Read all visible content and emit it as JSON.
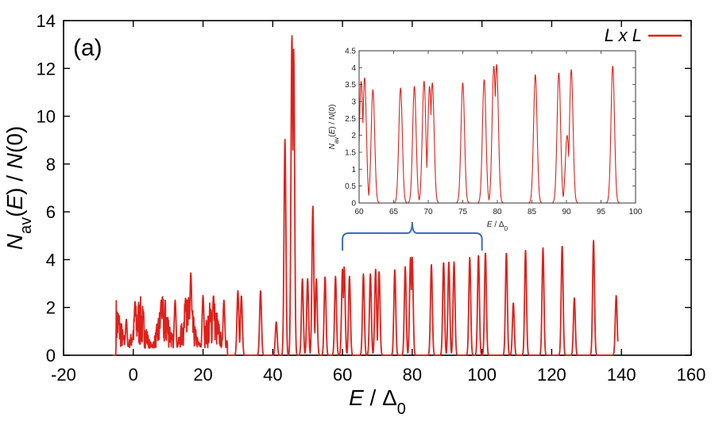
{
  "chart_data": [
    {
      "type": "line",
      "panel_label": "(a)",
      "xlabel": "E / Δ0",
      "ylabel": "Nav(E) / N(0)",
      "xlim": [
        -20,
        160
      ],
      "ylim": [
        0,
        14
      ],
      "xticks": [
        -20,
        0,
        20,
        40,
        60,
        80,
        100,
        120,
        140,
        160
      ],
      "yticks": [
        0,
        2,
        4,
        6,
        8,
        10,
        12,
        14
      ],
      "legend": {
        "label": "L x L",
        "position": "top-right"
      },
      "series": [
        {
          "name": "L x L",
          "color": "#e0201a",
          "noisy_band": {
            "x_range": [
              -5,
              27
            ],
            "approx_level": [
              0.3,
              2.5
            ]
          },
          "peaks": [
            [
              -2,
              1.5
            ],
            [
              0.5,
              2.25
            ],
            [
              8,
              2.3
            ],
            [
              12,
              2.3
            ],
            [
              15,
              2.4
            ],
            [
              16.5,
              3.45
            ],
            [
              20,
              2.5
            ],
            [
              23,
              2.5
            ],
            [
              26,
              2.3
            ],
            [
              30,
              2.7
            ],
            [
              31,
              2.5
            ],
            [
              36.5,
              2.7
            ],
            [
              41,
              1.4
            ],
            [
              43.5,
              9.05
            ],
            [
              45.5,
              13.4
            ],
            [
              46,
              12.8
            ],
            [
              48.5,
              3.2
            ],
            [
              50,
              3.2
            ],
            [
              51.5,
              6.25
            ],
            [
              52.5,
              3.2
            ],
            [
              55,
              3.3
            ],
            [
              58,
              3.3
            ],
            [
              60,
              3.6
            ],
            [
              60.5,
              3.7
            ],
            [
              62,
              3.3
            ],
            [
              66,
              3.4
            ],
            [
              68,
              3.4
            ],
            [
              69.5,
              3.6
            ],
            [
              70.5,
              3.5
            ],
            [
              75,
              3.6
            ],
            [
              78,
              3.7
            ],
            [
              79.5,
              4.1
            ],
            [
              80,
              4.1
            ],
            [
              85.5,
              3.8
            ],
            [
              89,
              3.9
            ],
            [
              90.5,
              3.9
            ],
            [
              92,
              3.9
            ],
            [
              96.5,
              4.1
            ],
            [
              99,
              4.2
            ],
            [
              101,
              4.3
            ],
            [
              107,
              4.3
            ],
            [
              109,
              2.2
            ],
            [
              112.5,
              4.4
            ],
            [
              117.5,
              4.5
            ],
            [
              123,
              4.6
            ],
            [
              126.5,
              2.4
            ],
            [
              132,
              4.8
            ],
            [
              138.5,
              2.5
            ]
          ]
        }
      ]
    },
    {
      "type": "line",
      "xlabel": "E / Δ0",
      "ylabel": "Nav(E) / N(0)",
      "xlim": [
        60,
        100
      ],
      "ylim": [
        0,
        4.5
      ],
      "xticks": [
        60,
        65,
        70,
        75,
        80,
        85,
        90,
        95,
        100
      ],
      "yticks": [
        0,
        0.5,
        1,
        1.5,
        2,
        2.5,
        3,
        3.5,
        4,
        4.5
      ],
      "zoom_range": [
        60,
        100
      ],
      "series": [
        {
          "name": "L x L",
          "color": "#e0201a",
          "peaks": [
            [
              60.3,
              3.6
            ],
            [
              60.8,
              3.7
            ],
            [
              62,
              3.35
            ],
            [
              66,
              3.4
            ],
            [
              68,
              3.45
            ],
            [
              69.4,
              3.6
            ],
            [
              70.2,
              3.45
            ],
            [
              70.6,
              3.55
            ],
            [
              75,
              3.55
            ],
            [
              78.1,
              3.65
            ],
            [
              79.5,
              4.05
            ],
            [
              79.9,
              4.1
            ],
            [
              85.5,
              3.8
            ],
            [
              88.9,
              3.85
            ],
            [
              90.1,
              2.0
            ],
            [
              90.7,
              3.95
            ],
            [
              96.7,
              4.05
            ]
          ]
        }
      ]
    }
  ]
}
